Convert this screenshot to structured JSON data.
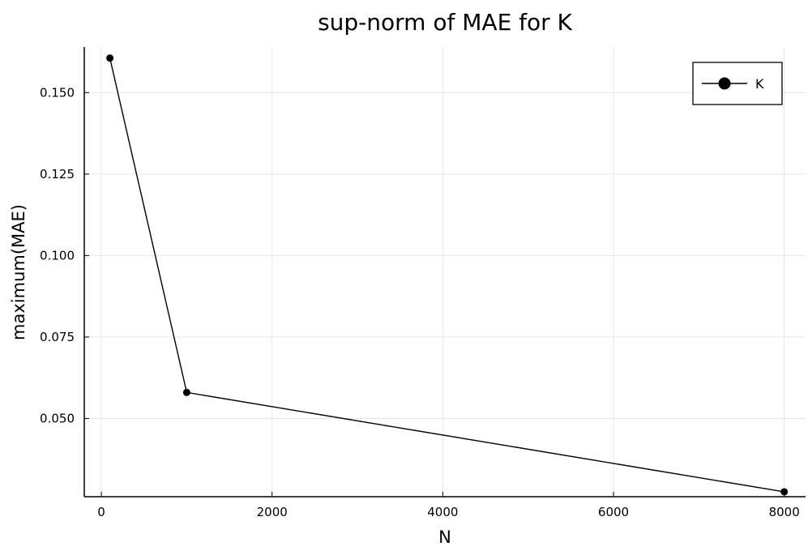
{
  "chart_data": {
    "type": "line",
    "title": "sup-norm of MAE for K",
    "xlabel": "N",
    "ylabel": "maximum(MAE)",
    "xlim": [
      -200,
      8250
    ],
    "ylim": [
      0.026,
      0.164
    ],
    "x_ticks": [
      0,
      2000,
      4000,
      6000,
      8000
    ],
    "x_tick_labels": [
      "0",
      "2000",
      "4000",
      "6000",
      "8000"
    ],
    "y_ticks": [
      0.05,
      0.075,
      0.1,
      0.125,
      0.15
    ],
    "y_tick_labels": [
      "0.050",
      "0.075",
      "0.100",
      "0.125",
      "0.150"
    ],
    "grid": true,
    "legend_position": "top-right",
    "series": [
      {
        "name": "K",
        "color": "#000000",
        "marker": "circle",
        "x": [
          100,
          1000,
          8000
        ],
        "y": [
          0.1606,
          0.058,
          0.0275
        ]
      }
    ]
  }
}
